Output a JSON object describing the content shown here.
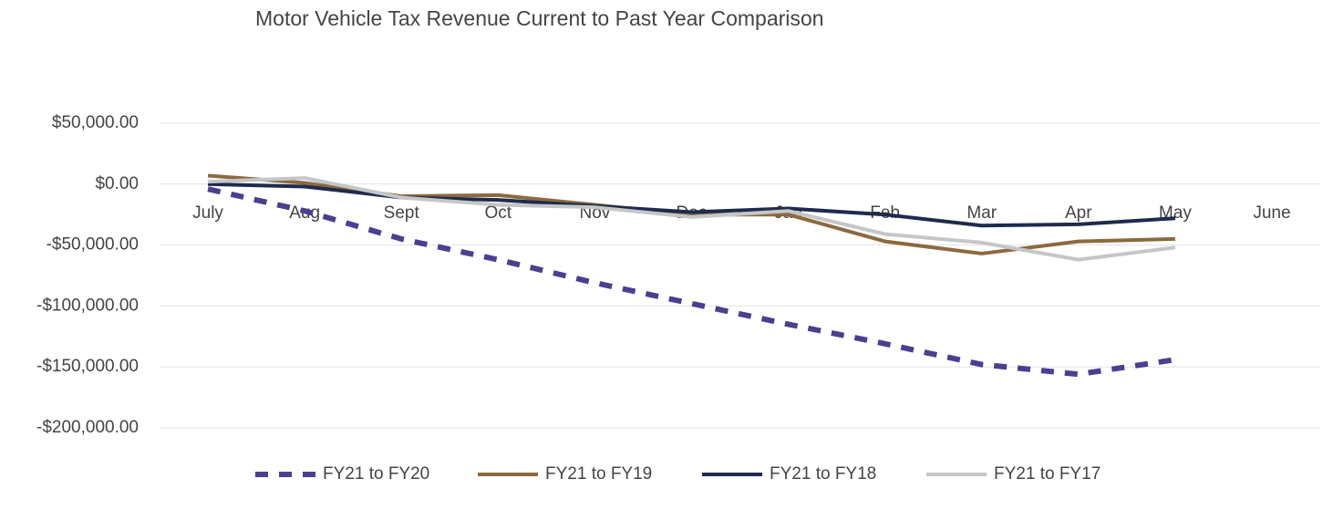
{
  "chart_data": {
    "type": "line",
    "title": "Motor Vehicle Tax Revenue Current to Past Year Comparison",
    "categories": [
      "July",
      "Aug",
      "Sept",
      "Oct",
      "Nov",
      "Dec",
      "Jan",
      "Feb",
      "Mar",
      "Apr",
      "May",
      "June"
    ],
    "series": [
      {
        "name": "FY21 to FY20",
        "color": "#4a3f91",
        "dashed": true,
        "values": [
          -4000,
          -22000,
          -45000,
          -62000,
          -81000,
          -98000,
          -115000,
          -131000,
          -148000,
          -156000,
          -144000,
          null
        ]
      },
      {
        "name": "FY21 to FY19",
        "color": "#8b6a3e",
        "dashed": false,
        "values": [
          7000,
          1000,
          -10000,
          -9000,
          -17000,
          -25000,
          -25000,
          -47000,
          -57000,
          -47000,
          -45000,
          null
        ]
      },
      {
        "name": "FY21 to FY18",
        "color": "#1f2a4d",
        "dashed": false,
        "values": [
          0,
          -2000,
          -11000,
          -13000,
          -18000,
          -23000,
          -20000,
          -25000,
          -34000,
          -33000,
          -28000,
          null
        ]
      },
      {
        "name": "FY21 to FY17",
        "color": "#c4c6c8",
        "dashed": false,
        "values": [
          2000,
          5000,
          -11000,
          -17000,
          -19000,
          -27000,
          -22000,
          -41000,
          -48000,
          -62000,
          -52000,
          null
        ]
      }
    ],
    "ylim": [
      -200000,
      50000
    ],
    "yticks": [
      {
        "value": 50000,
        "label": "$50,000.00"
      },
      {
        "value": 0,
        "label": "$0.00"
      },
      {
        "value": -50000,
        "label": "-$50,000.00"
      },
      {
        "value": -100000,
        "label": "-$100,000.00"
      },
      {
        "value": -150000,
        "label": "-$150,000.00"
      },
      {
        "value": -200000,
        "label": "-$200,000.00"
      }
    ],
    "grid": true,
    "legend": "bottom"
  }
}
